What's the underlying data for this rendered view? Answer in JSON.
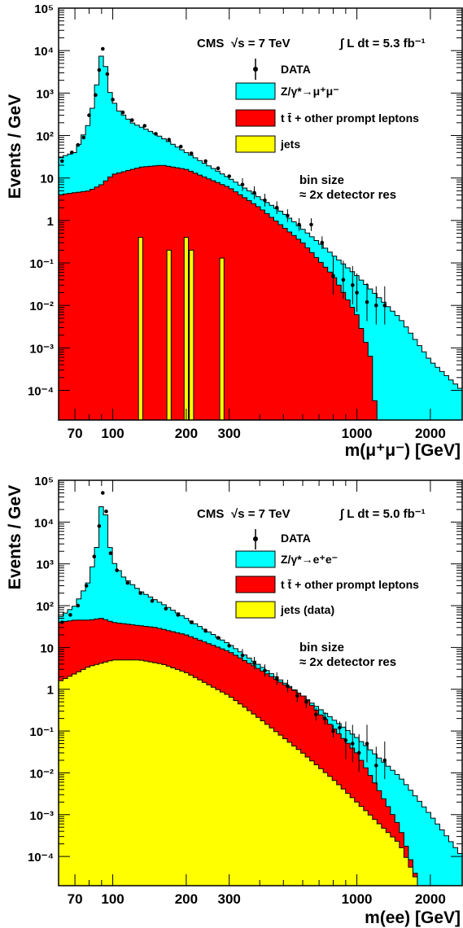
{
  "chart_data": [
    {
      "type": "bar",
      "panel": "top",
      "ylabel": "Events / GeV",
      "xlabel": "m(μ⁺μ⁻) [GeV]",
      "x_scale": "log",
      "y_scale": "log",
      "xlim": [
        60,
        2700
      ],
      "ylim": [
        2e-05,
        100000
      ],
      "x_ticks": [
        "70",
        "100",
        "200",
        "300",
        "1000",
        "2000"
      ],
      "y_ticks": [
        "10⁻⁴",
        "10⁻³",
        "10⁻²",
        "10⁻¹",
        "1",
        "10",
        "10²",
        "10³",
        "10⁴",
        "10⁵"
      ],
      "annotation": {
        "experiment": "CMS",
        "energy": "√s = 7 TeV",
        "lumi": "∫ L dt = 5.3 fb⁻¹",
        "bin_note_1": "bin size",
        "bin_note_2": "≈ 2x detector res"
      },
      "legend": [
        {
          "label": "DATA",
          "color": "#000000",
          "kind": "marker"
        },
        {
          "label": "Z/γ*→μ⁺μ⁻",
          "color": "#00ffff",
          "kind": "box"
        },
        {
          "label": "t t̄ + other prompt leptons",
          "color": "#ff0000",
          "kind": "box"
        },
        {
          "label": "jets",
          "color": "#ffff00",
          "kind": "box"
        }
      ],
      "series": [
        {
          "name": "Z/γ*→μ⁺μ⁻",
          "color": "#00ffff",
          "knots": [
            [
              60,
              30
            ],
            [
              70,
              40
            ],
            [
              80,
              200
            ],
            [
              85,
              1000
            ],
            [
              88,
              4000
            ],
            [
              91,
              12000
            ],
            [
              94,
              3500
            ],
            [
              98,
              900
            ],
            [
              105,
              400
            ],
            [
              120,
              200
            ],
            [
              150,
              110
            ],
            [
              200,
              40
            ],
            [
              300,
              10
            ],
            [
              500,
              1.5
            ],
            [
              700,
              0.3
            ],
            [
              1000,
              0.05
            ],
            [
              1500,
              0.005
            ],
            [
              2000,
              0.0005
            ],
            [
              2700,
              0.0001
            ]
          ]
        },
        {
          "name": "t t̄ + other prompt leptons",
          "color": "#ff0000",
          "knots": [
            [
              60,
              4
            ],
            [
              80,
              5
            ],
            [
              90,
              7
            ],
            [
              100,
              12
            ],
            [
              130,
              18
            ],
            [
              160,
              20
            ],
            [
              200,
              16
            ],
            [
              300,
              6
            ],
            [
              400,
              2
            ],
            [
              600,
              0.3
            ],
            [
              800,
              0.05
            ],
            [
              1000,
              0.006
            ],
            [
              1150,
              0.0005
            ],
            [
              1200,
              2e-05
            ]
          ]
        },
        {
          "name": "jets",
          "color": "#ffff00",
          "spikes": [
            [
              130,
              0.4
            ],
            [
              170,
              0.2
            ],
            [
              200,
              0.4
            ],
            [
              210,
              0.2
            ],
            [
              280,
              0.13
            ]
          ]
        }
      ],
      "data_points": [
        [
          62,
          25
        ],
        [
          68,
          40
        ],
        [
          72,
          60
        ],
        [
          76,
          90
        ],
        [
          80,
          300
        ],
        [
          85,
          900
        ],
        [
          88,
          3500
        ],
        [
          91,
          11000
        ],
        [
          95,
          2800
        ],
        [
          100,
          700
        ],
        [
          110,
          350
        ],
        [
          120,
          230
        ],
        [
          135,
          170
        ],
        [
          150,
          110
        ],
        [
          170,
          80
        ],
        [
          190,
          55
        ],
        [
          210,
          38
        ],
        [
          240,
          25
        ],
        [
          270,
          17
        ],
        [
          300,
          11
        ],
        [
          340,
          7
        ],
        [
          380,
          4.5
        ],
        [
          420,
          3
        ],
        [
          470,
          2
        ],
        [
          520,
          1.3
        ],
        [
          580,
          0.8
        ],
        [
          650,
          0.8
        ],
        [
          720,
          0.3
        ],
        [
          800,
          0.05
        ],
        [
          880,
          0.04
        ],
        [
          960,
          0.03
        ],
        [
          1000,
          0.02
        ],
        [
          1100,
          0.012
        ],
        [
          1200,
          0.01
        ],
        [
          1300,
          0.01
        ]
      ]
    },
    {
      "type": "bar",
      "panel": "bottom",
      "ylabel": "Events / GeV",
      "xlabel": "m(ee) [GeV]",
      "x_scale": "log",
      "y_scale": "log",
      "xlim": [
        60,
        2700
      ],
      "ylim": [
        2e-05,
        100000
      ],
      "x_ticks": [
        "70",
        "100",
        "200",
        "300",
        "1000",
        "2000"
      ],
      "y_ticks": [
        "10⁻⁴",
        "10⁻³",
        "10⁻²",
        "10⁻¹",
        "1",
        "10",
        "10²",
        "10³",
        "10⁴",
        "10⁵"
      ],
      "annotation": {
        "experiment": "CMS",
        "energy": "√s = 7 TeV",
        "lumi": "∫ L dt = 5.0 fb⁻¹",
        "bin_note_1": "bin size",
        "bin_note_2": "≈ 2x detector res"
      },
      "legend": [
        {
          "label": "DATA",
          "color": "#000000",
          "kind": "marker"
        },
        {
          "label": "Z/γ*→e⁺e⁻",
          "color": "#00ffff",
          "kind": "box"
        },
        {
          "label": "t t̄ + other prompt leptons",
          "color": "#ff0000",
          "kind": "box"
        },
        {
          "label": "jets (data)",
          "color": "#ffff00",
          "kind": "box"
        }
      ],
      "series": [
        {
          "name": "Z/γ*→e⁺e⁻",
          "color": "#00ffff",
          "knots": [
            [
              60,
              50
            ],
            [
              70,
              100
            ],
            [
              80,
              400
            ],
            [
              86,
              2500
            ],
            [
              89,
              15000
            ],
            [
              91,
              55000
            ],
            [
              93,
              20000
            ],
            [
              96,
              4000
            ],
            [
              100,
              1200
            ],
            [
              110,
              500
            ],
            [
              130,
              220
            ],
            [
              160,
              110
            ],
            [
              200,
              50
            ],
            [
              300,
              12
            ],
            [
              500,
              1.5
            ],
            [
              700,
              0.35
            ],
            [
              1000,
              0.07
            ],
            [
              1500,
              0.008
            ],
            [
              2000,
              0.001
            ],
            [
              2700,
              0.0001
            ]
          ]
        },
        {
          "name": "t t̄ + other prompt leptons",
          "color": "#ff0000",
          "knots": [
            [
              60,
              40
            ],
            [
              70,
              45
            ],
            [
              80,
              45
            ],
            [
              90,
              50
            ],
            [
              100,
              40
            ],
            [
              120,
              35
            ],
            [
              150,
              30
            ],
            [
              200,
              20
            ],
            [
              300,
              8
            ],
            [
              400,
              3
            ],
            [
              600,
              0.7
            ],
            [
              800,
              0.12
            ],
            [
              1000,
              0.03
            ],
            [
              1200,
              0.005
            ],
            [
              1500,
              0.0005
            ],
            [
              1800,
              2e-05
            ]
          ]
        },
        {
          "name": "jets (data)",
          "color": "#ffff00",
          "knots": [
            [
              60,
              1.5
            ],
            [
              80,
              3.5
            ],
            [
              100,
              5
            ],
            [
              130,
              5
            ],
            [
              160,
              4
            ],
            [
              200,
              2.5
            ],
            [
              300,
              0.7
            ],
            [
              400,
              0.2
            ],
            [
              600,
              0.03
            ],
            [
              800,
              0.007
            ],
            [
              1000,
              0.002
            ],
            [
              1500,
              0.0002
            ],
            [
              1800,
              2e-05
            ]
          ]
        }
      ],
      "data_points": [
        [
          62,
          40
        ],
        [
          67,
          60
        ],
        [
          72,
          100
        ],
        [
          78,
          300
        ],
        [
          84,
          1500
        ],
        [
          88,
          8000
        ],
        [
          91,
          50000
        ],
        [
          94,
          18000
        ],
        [
          98,
          1800
        ],
        [
          104,
          700
        ],
        [
          115,
          350
        ],
        [
          130,
          200
        ],
        [
          145,
          130
        ],
        [
          165,
          85
        ],
        [
          185,
          60
        ],
        [
          210,
          40
        ],
        [
          240,
          25
        ],
        [
          270,
          17
        ],
        [
          300,
          11
        ],
        [
          340,
          6.5
        ],
        [
          380,
          4.2
        ],
        [
          420,
          2.8
        ],
        [
          470,
          1.8
        ],
        [
          520,
          1.2
        ],
        [
          570,
          0.7
        ],
        [
          620,
          0.5
        ],
        [
          680,
          0.25
        ],
        [
          740,
          0.2
        ],
        [
          800,
          0.1
        ],
        [
          850,
          0.12
        ],
        [
          900,
          0.06
        ],
        [
          960,
          0.05
        ],
        [
          1020,
          0.03
        ],
        [
          1100,
          0.05
        ],
        [
          1200,
          0.015
        ],
        [
          1300,
          0.02
        ]
      ]
    }
  ]
}
